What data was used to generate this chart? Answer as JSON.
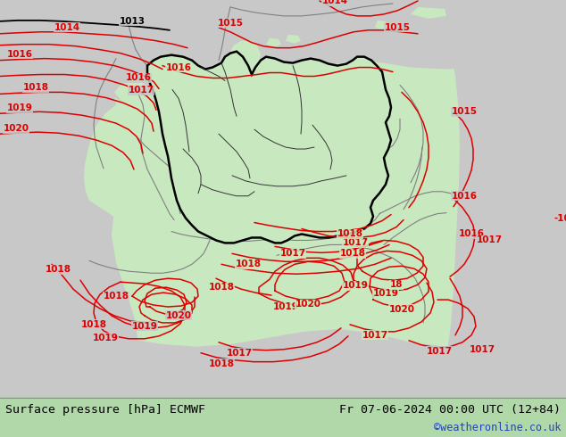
{
  "title_left": "Surface pressure [hPa] ECMWF",
  "title_right": "Fr 07-06-2024 00:00 UTC (12+84)",
  "credit": "©weatheronline.co.uk",
  "bg_green": "#c8e8c0",
  "bg_gray": "#c8c8c8",
  "bg_white": "#e8e8e8",
  "contour_red": "#dd0000",
  "contour_black": "#000000",
  "border_black": "#000000",
  "border_gray": "#808080",
  "bottom_green": "#b0d8a8",
  "bottom_line": "#888888",
  "credit_color": "#2244bb",
  "figsize": [
    6.34,
    4.9
  ],
  "dpi": 100
}
